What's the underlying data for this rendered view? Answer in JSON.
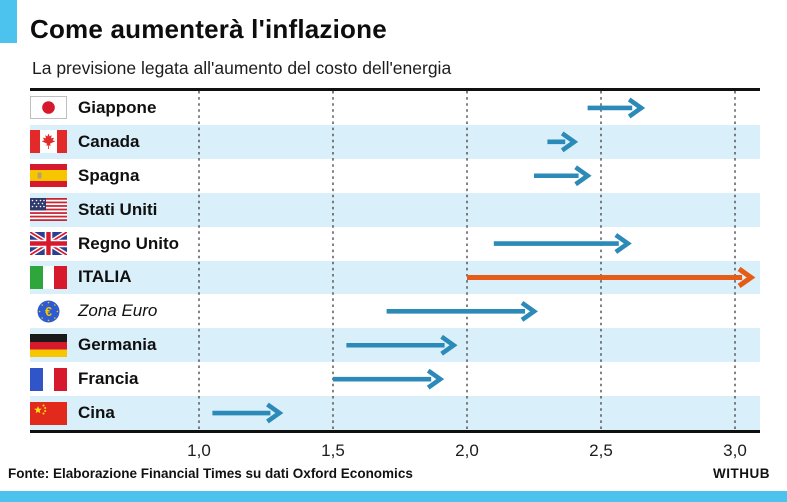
{
  "header": {
    "title": "Come aumenterà l'inflazione",
    "subtitle": "La previsione legata all'aumento del costo dell'energia"
  },
  "footer": {
    "source": "Fonte: Elaborazione Financial Times su dati Oxford Economics",
    "brand": "WITHUB"
  },
  "colors": {
    "accent_cyan": "#4cc2ef",
    "arrow_blue": "#2c8ab8",
    "arrow_orange": "#e65c17",
    "band_light_blue": "#d9effa",
    "rule_black": "#101010",
    "gridline_gray": "#3f3f3f"
  },
  "chart_data": {
    "type": "bar",
    "variant": "horizontal-range-arrow",
    "title": "Come aumenterà l'inflazione",
    "subtitle": "La previsione legata all'aumento del costo dell'energia",
    "xlabel": "",
    "ylabel": "",
    "xlim": [
      0.9,
      3.1
    ],
    "grid": "vertical-dashed",
    "axis": {
      "ticks": [
        {
          "label": "1,0",
          "value": 1.0
        },
        {
          "label": "1,5",
          "value": 1.5
        },
        {
          "label": "2,0",
          "value": 2.0
        },
        {
          "label": "2,5",
          "value": 2.5
        },
        {
          "label": "3,0",
          "value": 3.0
        }
      ]
    },
    "rows": [
      {
        "label": "Giappone",
        "flag": "japan",
        "start": 2.45,
        "end": 2.65,
        "color": "blue"
      },
      {
        "label": "Canada",
        "flag": "canada",
        "start": 2.3,
        "end": 2.4,
        "color": "blue"
      },
      {
        "label": "Spagna",
        "flag": "spain",
        "start": 2.25,
        "end": 2.45,
        "color": "blue"
      },
      {
        "label": "Stati Uniti",
        "flag": "usa",
        "start": null,
        "end": null,
        "color": "blue"
      },
      {
        "label": "Regno Unito",
        "flag": "uk",
        "start": 2.1,
        "end": 2.6,
        "color": "blue"
      },
      {
        "label": "ITALIA",
        "flag": "italy",
        "start": 2.0,
        "end": 3.06,
        "color": "orange"
      },
      {
        "label": "Zona Euro",
        "flag": "euro",
        "start": 1.7,
        "end": 2.25,
        "color": "blue"
      },
      {
        "label": "Germania",
        "flag": "germany",
        "start": 1.55,
        "end": 1.95,
        "color": "blue"
      },
      {
        "label": "Francia",
        "flag": "france",
        "start": 1.5,
        "end": 1.9,
        "color": "blue"
      },
      {
        "label": "Cina",
        "flag": "china",
        "start": 1.05,
        "end": 1.3,
        "color": "blue"
      }
    ]
  }
}
